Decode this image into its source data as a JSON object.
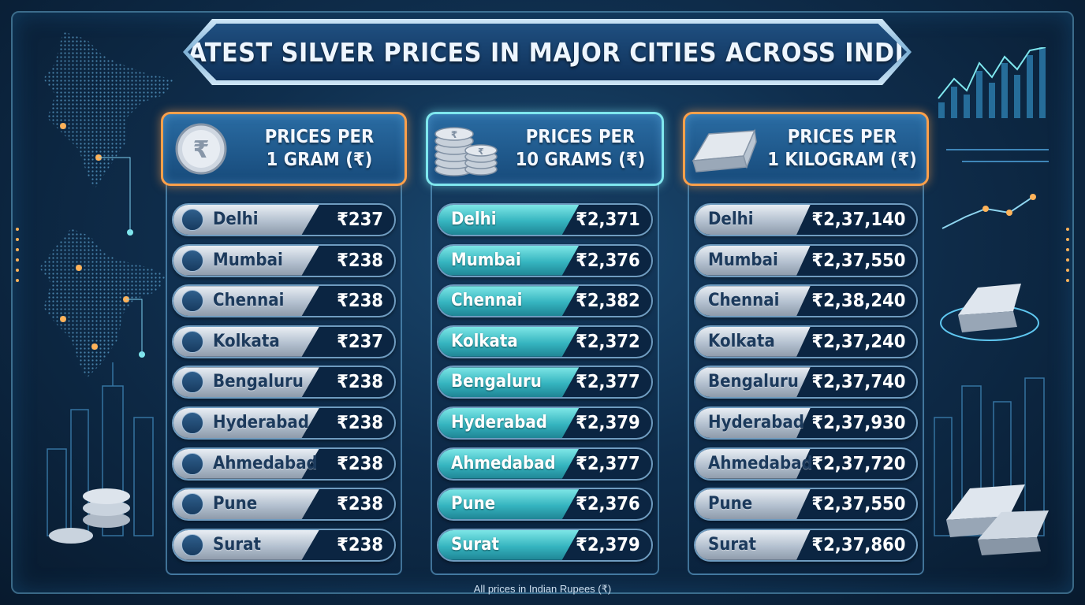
{
  "title": "LATEST SILVER PRICES IN MAJOR CITIES ACROSS INDIA",
  "columns": [
    {
      "header_line1": "PRICES PER",
      "header_line2": "1 GRAM (₹)",
      "icon": "rupee-coin-icon",
      "rows": [
        {
          "city": "Delhi",
          "price": "₹237"
        },
        {
          "city": "Mumbai",
          "price": "₹238"
        },
        {
          "city": "Chennai",
          "price": "₹238"
        },
        {
          "city": "Kolkata",
          "price": "₹237"
        },
        {
          "city": "Bengaluru",
          "price": "₹238"
        },
        {
          "city": "Hyderabad",
          "price": "₹238"
        },
        {
          "city": "Ahmedabad",
          "price": "₹238"
        },
        {
          "city": "Pune",
          "price": "₹238"
        },
        {
          "city": "Surat",
          "price": "₹238"
        }
      ]
    },
    {
      "header_line1": "PRICES PER",
      "header_line2": "10 GRAMS (₹)",
      "icon": "coin-stack-icon",
      "rows": [
        {
          "city": "Delhi",
          "price": "₹2,371"
        },
        {
          "city": "Mumbai",
          "price": "₹2,376"
        },
        {
          "city": "Chennai",
          "price": "₹2,382"
        },
        {
          "city": "Kolkata",
          "price": "₹2,372"
        },
        {
          "city": "Bengaluru",
          "price": "₹2,377"
        },
        {
          "city": "Hyderabad",
          "price": "₹2,379"
        },
        {
          "city": "Ahmedabad",
          "price": "₹2,377"
        },
        {
          "city": "Pune",
          "price": "₹2,376"
        },
        {
          "city": "Surat",
          "price": "₹2,379"
        }
      ]
    },
    {
      "header_line1": "PRICES PER",
      "header_line2": "1 KILOGRAM (₹)",
      "icon": "silver-bar-icon",
      "rows": [
        {
          "city": "Delhi",
          "price": "₹2,37,140"
        },
        {
          "city": "Mumbai",
          "price": "₹2,37,550"
        },
        {
          "city": "Chennai",
          "price": "₹2,38,240"
        },
        {
          "city": "Kolkata",
          "price": "₹2,37,240"
        },
        {
          "city": "Bengaluru",
          "price": "₹2,37,740"
        },
        {
          "city": "Hyderabad",
          "price": "₹2,37,930"
        },
        {
          "city": "Ahmedabad",
          "price": "₹2,37,720"
        },
        {
          "city": "Pune",
          "price": "₹2,37,550"
        },
        {
          "city": "Surat",
          "price": "₹2,37,860"
        }
      ]
    }
  ],
  "footnote": "All prices in Indian Rupees (₹)",
  "colors": {
    "accent_orange": "#ffa04a",
    "accent_teal": "#7fe7ee",
    "background": "#0f2e4d"
  }
}
